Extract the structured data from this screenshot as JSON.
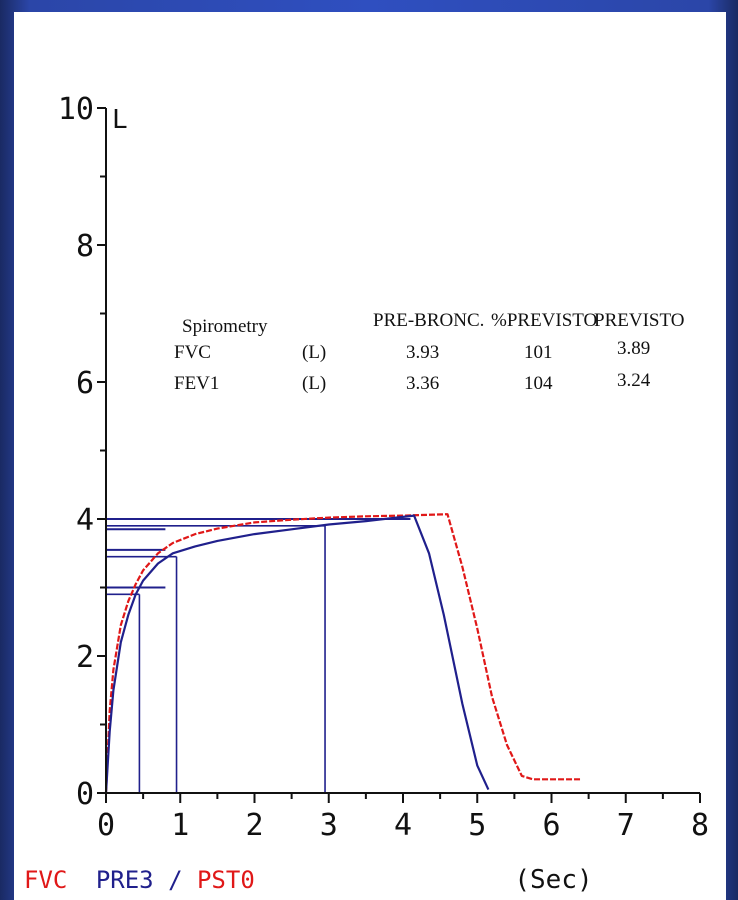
{
  "chart_data": {
    "type": "line",
    "y_unit": "L",
    "x_unit": "(Sec)",
    "xlim": [
      0,
      8
    ],
    "ylim": [
      0,
      10
    ],
    "x_ticks": [
      "0",
      "1",
      "2",
      "3",
      "4",
      "5",
      "6",
      "7",
      "8"
    ],
    "y_ticks": [
      "0",
      "2",
      "4",
      "6",
      "8",
      "10"
    ],
    "legend": {
      "fvc": {
        "text": "FVC",
        "color": "#e01818"
      },
      "pre": {
        "text": "PRE3",
        "color": "#20208c"
      },
      "slash": {
        "text": "/",
        "color": "#20208c"
      },
      "pst": {
        "text": "PST0",
        "color": "#e01818"
      }
    },
    "series": [
      {
        "color": "#e01818",
        "dashed": true,
        "x": [
          0,
          0.05,
          0.1,
          0.2,
          0.3,
          0.4,
          0.5,
          0.7,
          0.9,
          1.2,
          1.5,
          2.0,
          2.5,
          3.0,
          3.5,
          4.0,
          4.6,
          4.8,
          5.0,
          5.2,
          5.4,
          5.6,
          5.75,
          6.4
        ],
        "y": [
          0,
          1.2,
          1.8,
          2.45,
          2.8,
          3.05,
          3.25,
          3.5,
          3.65,
          3.78,
          3.86,
          3.95,
          3.99,
          4.02,
          4.04,
          4.05,
          4.07,
          3.3,
          2.4,
          1.4,
          0.7,
          0.25,
          0.2,
          0.2
        ]
      },
      {
        "color": "#20208c",
        "dashed": false,
        "x": [
          0,
          0.05,
          0.1,
          0.2,
          0.3,
          0.4,
          0.5,
          0.7,
          0.9,
          1.2,
          1.5,
          2.0,
          2.5,
          3.0,
          3.5,
          4.0,
          4.15,
          4.35,
          4.55,
          4.8,
          5.0,
          5.15
        ],
        "y": [
          0,
          0.9,
          1.5,
          2.2,
          2.6,
          2.9,
          3.1,
          3.35,
          3.5,
          3.6,
          3.68,
          3.78,
          3.85,
          3.92,
          3.97,
          4.03,
          4.05,
          3.5,
          2.6,
          1.3,
          0.4,
          0.05
        ]
      }
    ],
    "reference_lines": [
      {
        "x": 0.45,
        "y": 2.9
      },
      {
        "x": 0.95,
        "y": 3.45
      },
      {
        "x": 2.95,
        "y": 3.9
      },
      {
        "x": 0,
        "y": 3.0
      },
      {
        "x": 0,
        "y": 3.55
      },
      {
        "x": 0,
        "y": 3.85
      },
      {
        "x": 0,
        "y": 4.0
      }
    ],
    "table": {
      "headers": [
        "Spirometry",
        "",
        "PRE-BRONC.",
        "%PREVISTO",
        "PREVISTO"
      ],
      "rows": [
        [
          "FVC",
          "(L)",
          "3.93",
          "101",
          "3.89"
        ],
        [
          "FEV1",
          "(L)",
          "3.36",
          "104",
          "3.24"
        ]
      ]
    }
  }
}
